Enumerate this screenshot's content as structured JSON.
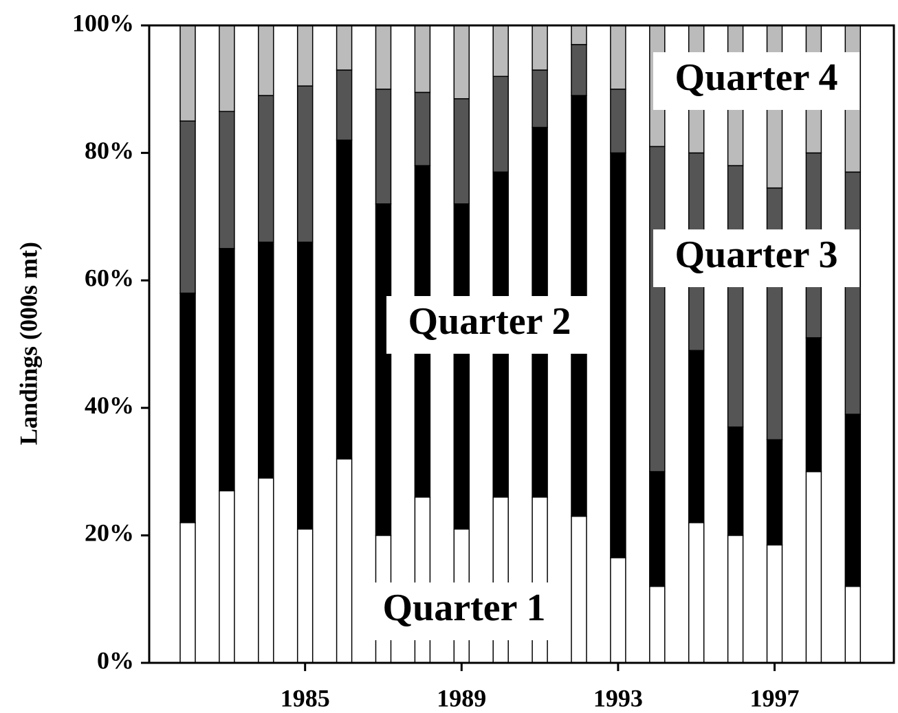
{
  "chart_data": {
    "type": "stacked-bar",
    "y_label": "Landings (000s mt)",
    "categories": [
      null,
      null,
      null,
      "1985",
      null,
      null,
      null,
      "1989",
      null,
      null,
      null,
      "1993",
      null,
      null,
      null,
      "1997",
      null,
      null
    ],
    "series": [
      {
        "name": "Quarter 1",
        "color": "#ffffff",
        "values": [
          22,
          27,
          29,
          21,
          32,
          20,
          26,
          21,
          26,
          26,
          23,
          16.5,
          12,
          22,
          20,
          18.5,
          30,
          12
        ]
      },
      {
        "name": "Quarter 2",
        "color": "#000000",
        "values": [
          36,
          38,
          37,
          45,
          50,
          52,
          52,
          51,
          51,
          58,
          66,
          63.5,
          18,
          27,
          17,
          16.5,
          21,
          27
        ]
      },
      {
        "name": "Quarter 3",
        "color": "#555555",
        "values": [
          27,
          21.5,
          23,
          24.5,
          11,
          18,
          11.5,
          16.5,
          15,
          9,
          8,
          10,
          51,
          31,
          41,
          39.5,
          29,
          38
        ]
      },
      {
        "name": "Quarter 4",
        "color": "#bbbbbb",
        "values": [
          15,
          13.5,
          11,
          9.5,
          7,
          10,
          10.5,
          11.5,
          8,
          7,
          3,
          10,
          19,
          20,
          22,
          25.5,
          20,
          23
        ]
      }
    ],
    "ylim": [
      0,
      100
    ],
    "yticks": [
      {
        "value": 0,
        "label": "0%"
      },
      {
        "value": 20,
        "label": "20%"
      },
      {
        "value": 40,
        "label": "40%"
      },
      {
        "value": 60,
        "label": "60%"
      },
      {
        "value": 80,
        "label": "80%"
      },
      {
        "value": 100,
        "label": "100%"
      }
    ]
  }
}
